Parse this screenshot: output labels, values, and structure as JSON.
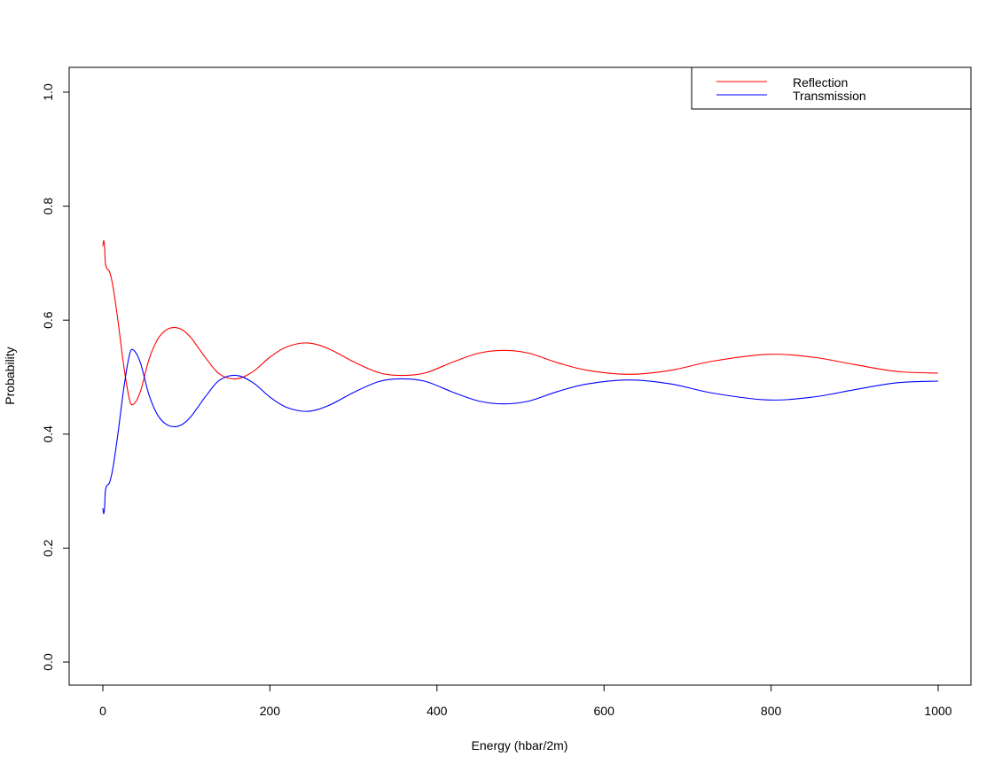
{
  "chart_data": {
    "type": "line",
    "title": "",
    "xlabel": "Energy (hbar/2m)",
    "ylabel": "Probability",
    "xlim": [
      0,
      1000
    ],
    "ylim": [
      0,
      1
    ],
    "x_ticks": [
      0,
      200,
      400,
      600,
      800,
      1000
    ],
    "y_ticks": [
      0.0,
      0.2,
      0.4,
      0.6,
      0.8,
      1.0
    ],
    "x_tick_labels": [
      "0",
      "200",
      "400",
      "600",
      "800",
      "1000"
    ],
    "y_tick_labels": [
      "0.0",
      "0.2",
      "0.4",
      "0.6",
      "0.8",
      "1.0"
    ],
    "grid": false,
    "legend_position": "top-right",
    "series": [
      {
        "name": "Reflection",
        "color": "#ff0000",
        "x": [
          0,
          1,
          2,
          3,
          5,
          8,
          12,
          18,
          25,
          32,
          37,
          45,
          55,
          65,
          75,
          85,
          95,
          105,
          115,
          125,
          140,
          160,
          180,
          200,
          220,
          245,
          270,
          300,
          330,
          355,
          385,
          420,
          450,
          480,
          510,
          545,
          580,
          630,
          680,
          730,
          795,
          850,
          900,
          950,
          1000
        ],
        "values": [
          0.73,
          0.74,
          0.73,
          0.7,
          0.69,
          0.685,
          0.66,
          0.6,
          0.52,
          0.46,
          0.453,
          0.475,
          0.53,
          0.565,
          0.582,
          0.587,
          0.583,
          0.57,
          0.55,
          0.53,
          0.505,
          0.497,
          0.51,
          0.535,
          0.553,
          0.56,
          0.55,
          0.527,
          0.508,
          0.503,
          0.507,
          0.527,
          0.542,
          0.547,
          0.542,
          0.525,
          0.512,
          0.505,
          0.512,
          0.528,
          0.54,
          0.535,
          0.522,
          0.51,
          0.507
        ]
      },
      {
        "name": "Transmission",
        "color": "#0000ff",
        "x": [
          0,
          1,
          2,
          3,
          5,
          8,
          12,
          18,
          25,
          32,
          37,
          45,
          55,
          65,
          75,
          85,
          95,
          105,
          115,
          125,
          140,
          160,
          180,
          200,
          220,
          245,
          270,
          300,
          330,
          355,
          385,
          420,
          450,
          480,
          510,
          545,
          580,
          630,
          680,
          730,
          795,
          850,
          900,
          950,
          1000
        ],
        "values": [
          0.27,
          0.26,
          0.27,
          0.3,
          0.31,
          0.315,
          0.34,
          0.4,
          0.48,
          0.54,
          0.547,
          0.525,
          0.47,
          0.435,
          0.418,
          0.413,
          0.417,
          0.43,
          0.45,
          0.47,
          0.495,
          0.503,
          0.49,
          0.465,
          0.447,
          0.44,
          0.45,
          0.473,
          0.492,
          0.497,
          0.493,
          0.473,
          0.458,
          0.453,
          0.458,
          0.475,
          0.488,
          0.495,
          0.488,
          0.472,
          0.46,
          0.465,
          0.478,
          0.49,
          0.493
        ]
      }
    ]
  }
}
